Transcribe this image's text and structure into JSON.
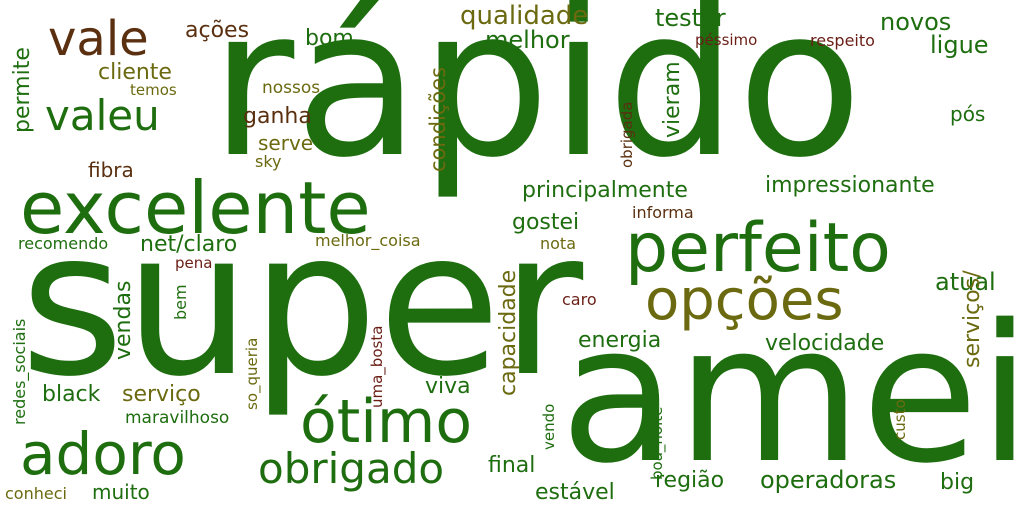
{
  "palette": {
    "green": "#1e6e10",
    "dark_green": "#2e6a12",
    "brown": "#5a3010",
    "olive": "#6b6a10",
    "dark_red": "#6a1e16"
  },
  "words": [
    "rápido",
    "super",
    "amei",
    "excelente",
    "perfeito",
    "opções",
    "ótimo",
    "adoro",
    "obrigado",
    "valeu",
    "vale",
    "qualidade",
    "testar",
    "novos",
    "ligue",
    "melhor",
    "bom",
    "ações",
    "cliente",
    "temos",
    "permite",
    "nossos",
    "ganha",
    "serve",
    "sky",
    "fibra",
    "condições",
    "obrigada",
    "vieram",
    "péssimo",
    "respeito",
    "pós",
    "principalmente",
    "impressionante",
    "informa",
    "gostei",
    "recomendo",
    "net/claro",
    "melhor_coisa",
    "nota",
    "pena",
    "atual",
    "capacidade",
    "vendas",
    "bem",
    "caro",
    "energia",
    "velocidade",
    "serviços/",
    "redes_sociais",
    "so_queria",
    "uma_bosta",
    "black",
    "serviço",
    "viva",
    "maravilhoso",
    "vendo",
    "boa_noite",
    "custo",
    "final",
    "região",
    "operadoras",
    "big",
    "estável",
    "muito",
    "conheci"
  ]
}
